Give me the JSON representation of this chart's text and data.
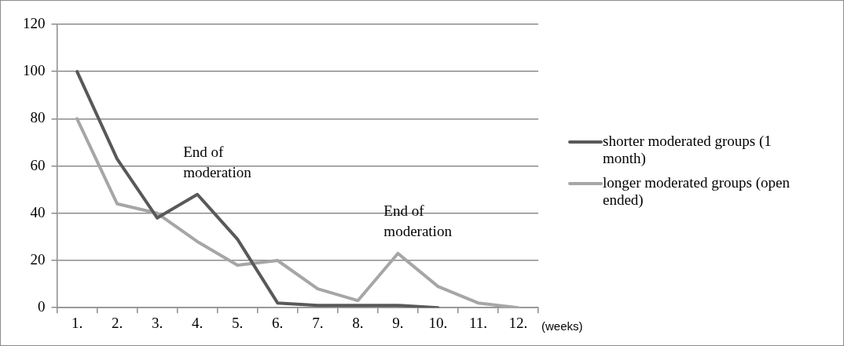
{
  "chart_data": {
    "type": "line",
    "categories": [
      "1.",
      "2.",
      "3.",
      "4.",
      "5.",
      "6.",
      "7.",
      "8.",
      "9.",
      "10.",
      "11.",
      "12."
    ],
    "xlabel": "(weeks)",
    "series": [
      {
        "name": "shorter moderated groups (1 month)",
        "color": "#595959",
        "values": [
          100,
          63,
          38,
          48,
          29,
          2,
          1,
          1,
          1,
          0,
          null,
          null
        ]
      },
      {
        "name": "longer moderated groups (open ended)",
        "color": "#a6a6a6",
        "values": [
          80,
          44,
          40,
          28,
          18,
          20,
          8,
          3,
          23,
          9,
          2,
          0
        ]
      }
    ],
    "annotations": [
      {
        "text": "End of moderation",
        "x": "4.",
        "y": 48
      },
      {
        "text": "End of moderation",
        "x": "9.",
        "y": 23
      }
    ],
    "ylim": [
      0,
      120
    ],
    "yticks": [
      0,
      20,
      40,
      60,
      80,
      100,
      120
    ],
    "grid": "y",
    "legend": "right",
    "marker": "none",
    "line_style": "solid"
  }
}
